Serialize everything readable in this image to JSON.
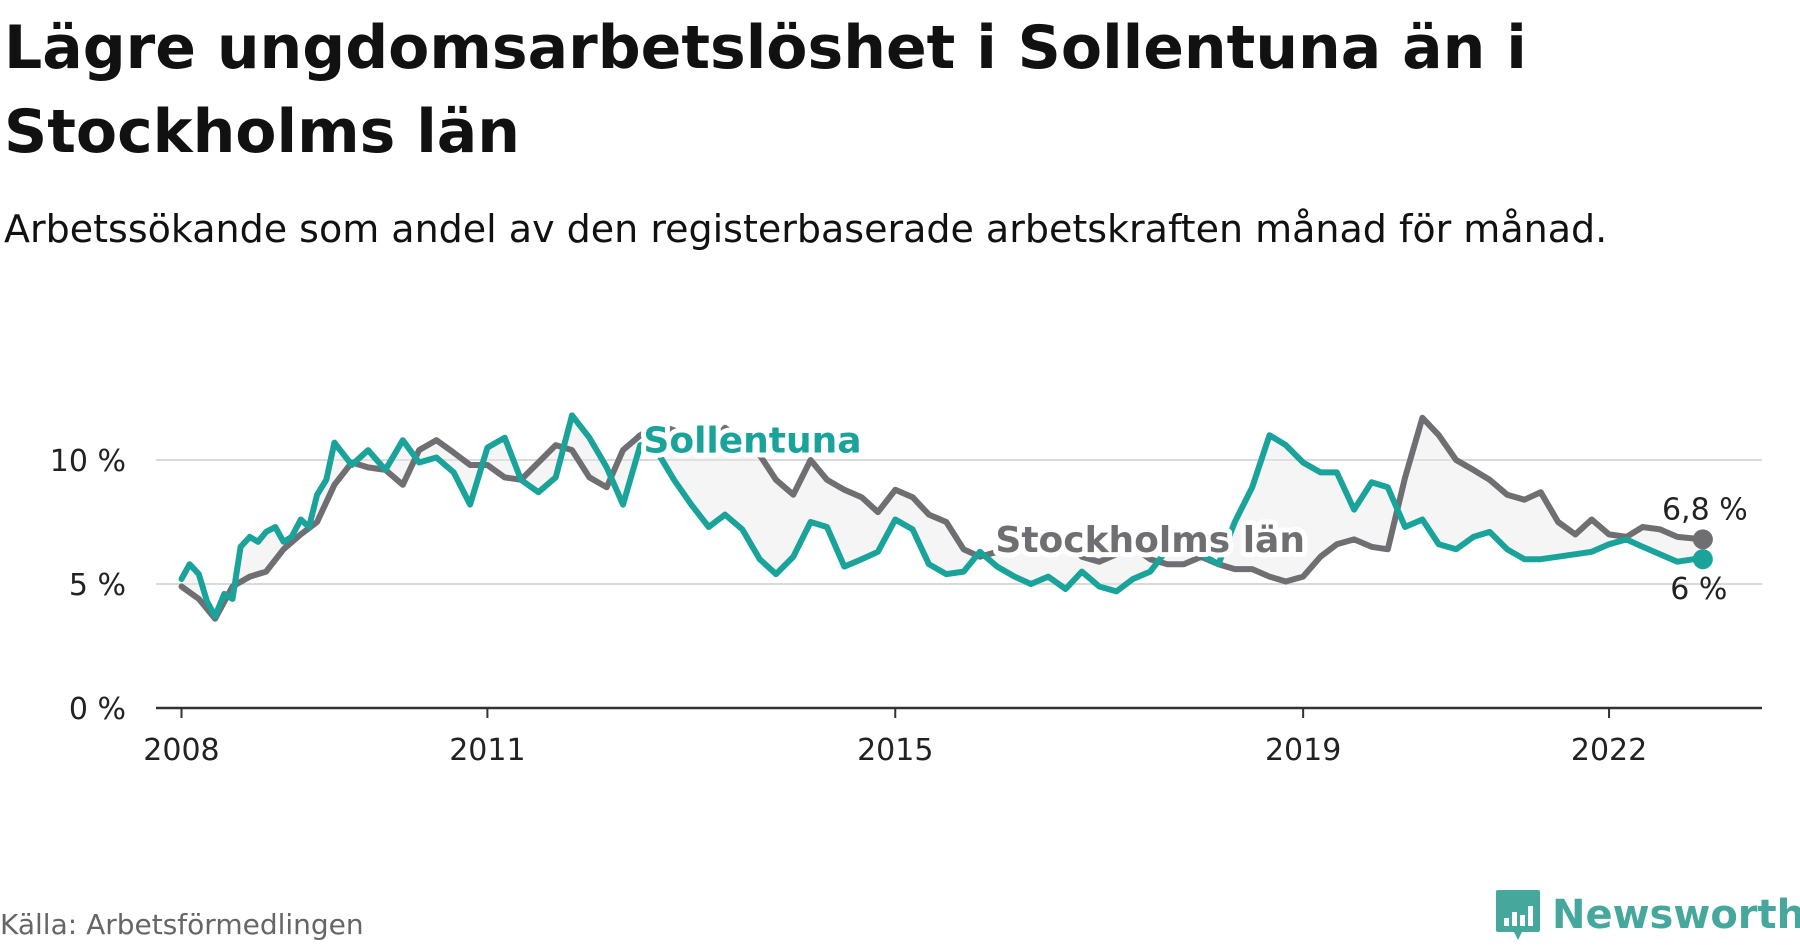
{
  "title": "Lägre ungdomsarbetslöshet i Sollentuna än i Stockholms län",
  "subtitle": "Arbetssökande som andel av den registerbaserade arbetskraften månad för månad.",
  "source": "Källa: Arbetsförmedlingen",
  "brand": {
    "name": "Newsworthy",
    "logo_icon": "bar-chart-icon"
  },
  "colors": {
    "sollentuna": "#1aa39a",
    "stockholm": "#6f6e72",
    "gap_fill": "#e8e8e8",
    "grid": "#d9d9d9",
    "axis": "#333333",
    "brand": "#46a89c"
  },
  "chart_data": {
    "type": "line",
    "title": "Lägre ungdomsarbetslöshet i Sollentuna än i Stockholms län",
    "xlabel": "",
    "ylabel": "",
    "xlim": [
      2007.75,
      2023.5
    ],
    "ylim": [
      0,
      12.5
    ],
    "y_ticks": [
      0,
      5,
      10
    ],
    "y_tick_labels": [
      "0 %",
      "5 %",
      "10 %"
    ],
    "x_ticks": [
      2008,
      2011,
      2015,
      2019,
      2022
    ],
    "x_tick_labels": [
      "2008",
      "2011",
      "2015",
      "2019",
      "2022"
    ],
    "grid": true,
    "series": [
      {
        "name": "Stockholms län",
        "label": "Stockholms län",
        "end_label": "6,8 %",
        "x": [
          2008.0,
          2008.17,
          2008.33,
          2008.5,
          2008.67,
          2008.83,
          2009.0,
          2009.17,
          2009.33,
          2009.5,
          2009.67,
          2009.83,
          2010.0,
          2010.17,
          2010.33,
          2010.5,
          2010.67,
          2010.83,
          2011.0,
          2011.17,
          2011.33,
          2011.5,
          2011.67,
          2011.83,
          2012.0,
          2012.17,
          2012.33,
          2012.5,
          2012.67,
          2012.83,
          2013.0,
          2013.17,
          2013.33,
          2013.5,
          2013.67,
          2013.83,
          2014.0,
          2014.17,
          2014.33,
          2014.5,
          2014.67,
          2014.83,
          2015.0,
          2015.17,
          2015.33,
          2015.5,
          2015.67,
          2015.83,
          2016.0,
          2016.17,
          2016.33,
          2016.5,
          2016.67,
          2016.83,
          2017.0,
          2017.17,
          2017.33,
          2017.5,
          2017.67,
          2017.83,
          2018.0,
          2018.17,
          2018.33,
          2018.5,
          2018.67,
          2018.83,
          2019.0,
          2019.17,
          2019.33,
          2019.5,
          2019.67,
          2019.83,
          2020.0,
          2020.17,
          2020.33,
          2020.5,
          2020.67,
          2020.83,
          2021.0,
          2021.17,
          2021.33,
          2021.5,
          2021.67,
          2021.83,
          2022.0,
          2022.17,
          2022.33,
          2022.5,
          2022.67,
          2022.92
        ],
        "values": [
          4.9,
          4.4,
          3.6,
          4.9,
          5.3,
          5.5,
          6.4,
          7.0,
          7.5,
          9.0,
          9.9,
          9.7,
          9.6,
          9.0,
          10.4,
          10.8,
          10.3,
          9.8,
          9.8,
          9.3,
          9.2,
          9.9,
          10.6,
          10.4,
          9.3,
          8.9,
          10.4,
          11.0,
          11.4,
          11.2,
          10.6,
          10.5,
          11.3,
          10.8,
          10.2,
          9.2,
          8.6,
          10.0,
          9.2,
          8.8,
          8.5,
          7.9,
          8.8,
          8.5,
          7.8,
          7.5,
          6.4,
          6.1,
          6.3,
          7.0,
          6.6,
          6.5,
          6.7,
          6.1,
          5.9,
          6.2,
          6.5,
          6.0,
          5.8,
          5.8,
          6.1,
          5.8,
          5.6,
          5.6,
          5.3,
          5.1,
          5.3,
          6.1,
          6.6,
          6.8,
          6.5,
          6.4,
          9.3,
          11.7,
          11.0,
          10.0,
          9.6,
          9.2,
          8.6,
          8.4,
          8.7,
          7.5,
          7.0,
          7.6,
          7.0,
          6.9,
          7.3,
          7.2,
          6.9,
          6.8
        ]
      },
      {
        "name": "Sollentuna",
        "label": "Sollentuna",
        "end_label": "6 %",
        "x": [
          2008.0,
          2008.08,
          2008.17,
          2008.25,
          2008.33,
          2008.42,
          2008.5,
          2008.58,
          2008.67,
          2008.75,
          2008.83,
          2008.92,
          2009.0,
          2009.08,
          2009.17,
          2009.25,
          2009.33,
          2009.42,
          2009.5,
          2009.67,
          2009.83,
          2010.0,
          2010.17,
          2010.33,
          2010.5,
          2010.67,
          2010.83,
          2011.0,
          2011.17,
          2011.33,
          2011.5,
          2011.67,
          2011.83,
          2012.0,
          2012.17,
          2012.33,
          2012.5,
          2012.67,
          2012.83,
          2013.0,
          2013.17,
          2013.33,
          2013.5,
          2013.67,
          2013.83,
          2014.0,
          2014.17,
          2014.33,
          2014.5,
          2014.67,
          2014.83,
          2015.0,
          2015.17,
          2015.33,
          2015.5,
          2015.67,
          2015.83,
          2016.0,
          2016.17,
          2016.33,
          2016.5,
          2016.67,
          2016.83,
          2017.0,
          2017.17,
          2017.33,
          2017.5,
          2017.67,
          2017.83,
          2018.0,
          2018.17,
          2018.33,
          2018.5,
          2018.67,
          2018.83,
          2019.0,
          2019.17,
          2019.33,
          2019.5,
          2019.67,
          2019.83,
          2020.0,
          2020.17,
          2020.33,
          2020.5,
          2020.67,
          2020.83,
          2021.0,
          2021.17,
          2021.33,
          2021.5,
          2021.67,
          2021.83,
          2022.0,
          2022.17,
          2022.33,
          2022.5,
          2022.67,
          2022.83,
          2022.92
        ],
        "values": [
          5.2,
          5.8,
          5.4,
          4.3,
          3.7,
          4.6,
          4.4,
          6.5,
          6.9,
          6.7,
          7.1,
          7.3,
          6.7,
          6.9,
          7.6,
          7.3,
          8.6,
          9.2,
          10.7,
          9.8,
          10.4,
          9.6,
          10.8,
          9.9,
          10.1,
          9.5,
          8.2,
          10.5,
          10.9,
          9.2,
          8.7,
          9.3,
          11.8,
          10.9,
          9.7,
          8.2,
          10.6,
          10.3,
          9.2,
          8.2,
          7.3,
          7.8,
          7.2,
          6.0,
          5.4,
          6.1,
          7.5,
          7.3,
          5.7,
          6.0,
          6.3,
          7.6,
          7.2,
          5.8,
          5.4,
          5.5,
          6.3,
          5.7,
          5.3,
          5.0,
          5.3,
          4.8,
          5.5,
          4.9,
          4.7,
          5.2,
          5.5,
          6.4,
          6.7,
          6.2,
          5.8,
          7.5,
          8.9,
          11.0,
          10.6,
          9.9,
          9.5,
          9.5,
          8.0,
          9.1,
          8.9,
          7.3,
          7.6,
          6.6,
          6.4,
          6.9,
          7.1,
          6.4,
          6.0,
          6.0,
          6.1,
          6.2,
          6.3,
          6.6,
          6.8,
          6.5,
          6.2,
          5.9,
          6.0,
          6.0
        ]
      }
    ]
  }
}
